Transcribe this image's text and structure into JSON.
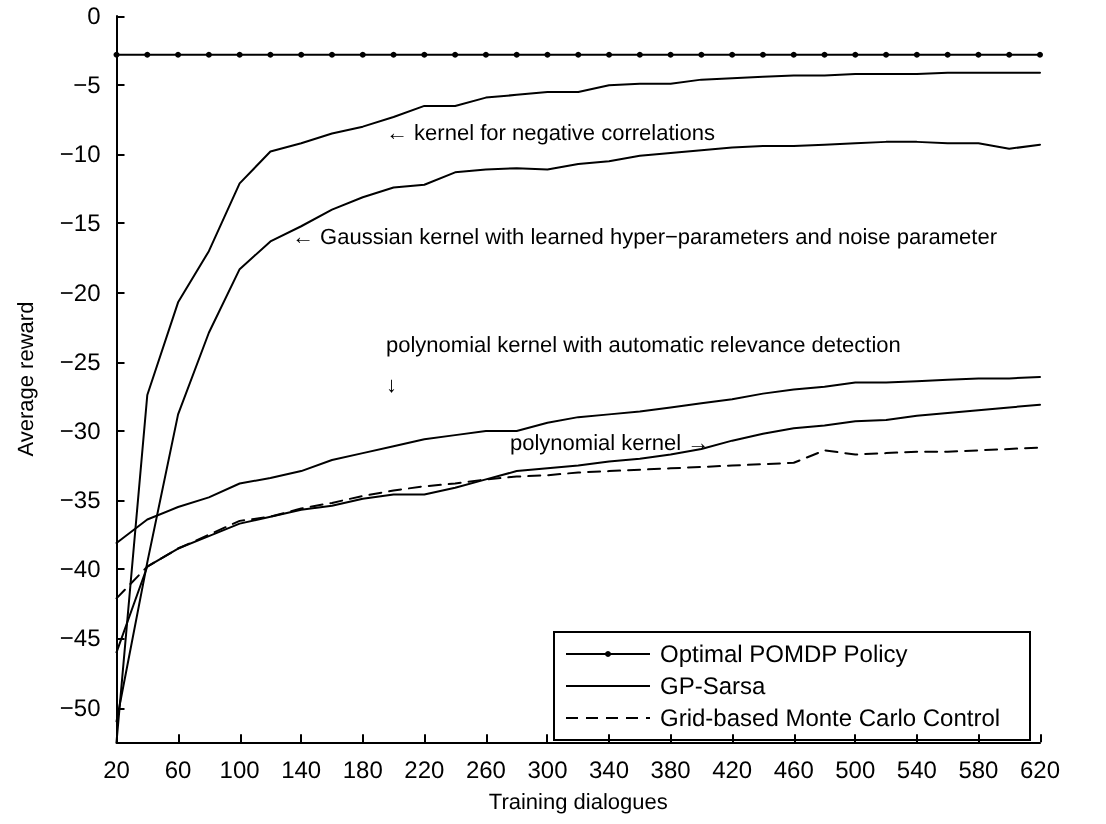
{
  "chart_data": {
    "type": "line",
    "xlabel": "Training dialogues",
    "ylabel": "Average reward",
    "x": [
      20,
      40,
      60,
      80,
      100,
      120,
      140,
      160,
      180,
      200,
      220,
      240,
      260,
      280,
      300,
      320,
      340,
      360,
      380,
      400,
      420,
      440,
      460,
      480,
      500,
      520,
      540,
      560,
      580,
      600,
      620
    ],
    "xlim": [
      20,
      620
    ],
    "xticks": [
      20,
      60,
      100,
      140,
      180,
      220,
      260,
      300,
      340,
      380,
      420,
      460,
      500,
      540,
      580,
      620
    ],
    "ylim": [
      -52.5,
      0
    ],
    "yticks": [
      -50,
      -45,
      -40,
      -35,
      -30,
      -25,
      -20,
      -15,
      -10,
      -5,
      0
    ],
    "grid": false,
    "legend": "bottom right",
    "series": [
      {
        "name": "Optimal POMDP Policy",
        "color": "#000000",
        "marker": "circle",
        "line_style": "solid",
        "values": [
          -2.8,
          -2.8,
          -2.8,
          -2.8,
          -2.8,
          -2.8,
          -2.8,
          -2.8,
          -2.8,
          -2.8,
          -2.8,
          -2.8,
          -2.8,
          -2.8,
          -2.8,
          -2.8,
          -2.8,
          -2.8,
          -2.8,
          -2.8,
          -2.8,
          -2.8,
          -2.8,
          -2.8,
          -2.8,
          -2.8,
          -2.8,
          -2.8,
          -2.8,
          -2.8,
          -2.8
        ]
      },
      {
        "name": "GP-Sarsa",
        "color": "#000000",
        "marker": "none",
        "line_style": "solid",
        "values": [
          -52.5,
          -27.4,
          -20.7,
          -17,
          -12.1,
          -9.8,
          -9.2,
          -8.5,
          -8,
          -7.3,
          -6.5,
          -6.5,
          -5.9,
          -5.7,
          -5.5,
          -5.5,
          -5,
          -4.9,
          -4.9,
          -4.6,
          -4.5,
          -4.4,
          -4.3,
          -4.3,
          -4.2,
          -4.2,
          -4.2,
          -4.1,
          -4.1,
          -4.1,
          -4.1
        ]
      },
      {
        "color": "#000000",
        "marker": "none",
        "line_style": "solid",
        "values": [
          -51,
          -39.5,
          -28.8,
          -22.9,
          -18.3,
          -16.3,
          -15.2,
          -14,
          -13.1,
          -12.4,
          -12.2,
          -11.3,
          -11.1,
          -11,
          -11.1,
          -10.7,
          -10.5,
          -10.1,
          -9.9,
          -9.7,
          -9.5,
          -9.4,
          -9.4,
          -9.3,
          -9.2,
          -9.1,
          -9.1,
          -9.2,
          -9.2,
          -9.6,
          -9.3
        ]
      },
      {
        "color": "#000000",
        "marker": "none",
        "line_style": "solid",
        "values": [
          -38.1,
          -36.4,
          -35.5,
          -34.8,
          -33.8,
          -33.4,
          -32.9,
          -32.1,
          -31.6,
          -31.1,
          -30.6,
          -30.3,
          -30,
          -30,
          -29.4,
          -29,
          -28.8,
          -28.6,
          -28.3,
          -28,
          -27.7,
          -27.3,
          -27,
          -26.8,
          -26.5,
          -26.5,
          -26.4,
          -26.3,
          -26.2,
          -26.2,
          -26.1
        ]
      },
      {
        "color": "#000000",
        "marker": "none",
        "line_style": "solid",
        "values": [
          -46,
          -39.8,
          -38.5,
          -37.6,
          -36.7,
          -36.2,
          -35.7,
          -35.4,
          -34.9,
          -34.6,
          -34.6,
          -34.1,
          -33.5,
          -32.9,
          -32.7,
          -32.5,
          -32.2,
          -32,
          -31.7,
          -31.3,
          -30.7,
          -30.2,
          -29.8,
          -29.6,
          -29.3,
          -29.2,
          -28.9,
          -28.7,
          -28.5,
          -28.3,
          -28.1
        ]
      },
      {
        "name": "Grid-based Monte Carlo Control",
        "color": "#000000",
        "marker": "none",
        "line_style": "dashed",
        "values": [
          -42.1,
          -39.8,
          -38.5,
          -37.5,
          -36.5,
          -36.2,
          -35.6,
          -35.2,
          -34.7,
          -34.3,
          -34,
          -33.8,
          -33.5,
          -33.3,
          -33.2,
          -33,
          -32.9,
          -32.8,
          -32.7,
          -32.6,
          -32.5,
          -32.4,
          -32.3,
          -31.4,
          -31.7,
          -31.6,
          -31.5,
          -31.5,
          -31.4,
          -31.3,
          -31.2
        ]
      }
    ],
    "annotations": [
      "← kernel for negative correlations",
      "← Gaussian kernel with learned hyper−parameters and noise parameter",
      "polynomial kernel with automatic relevance detection\n↓",
      "polynomial kernel →"
    ]
  }
}
